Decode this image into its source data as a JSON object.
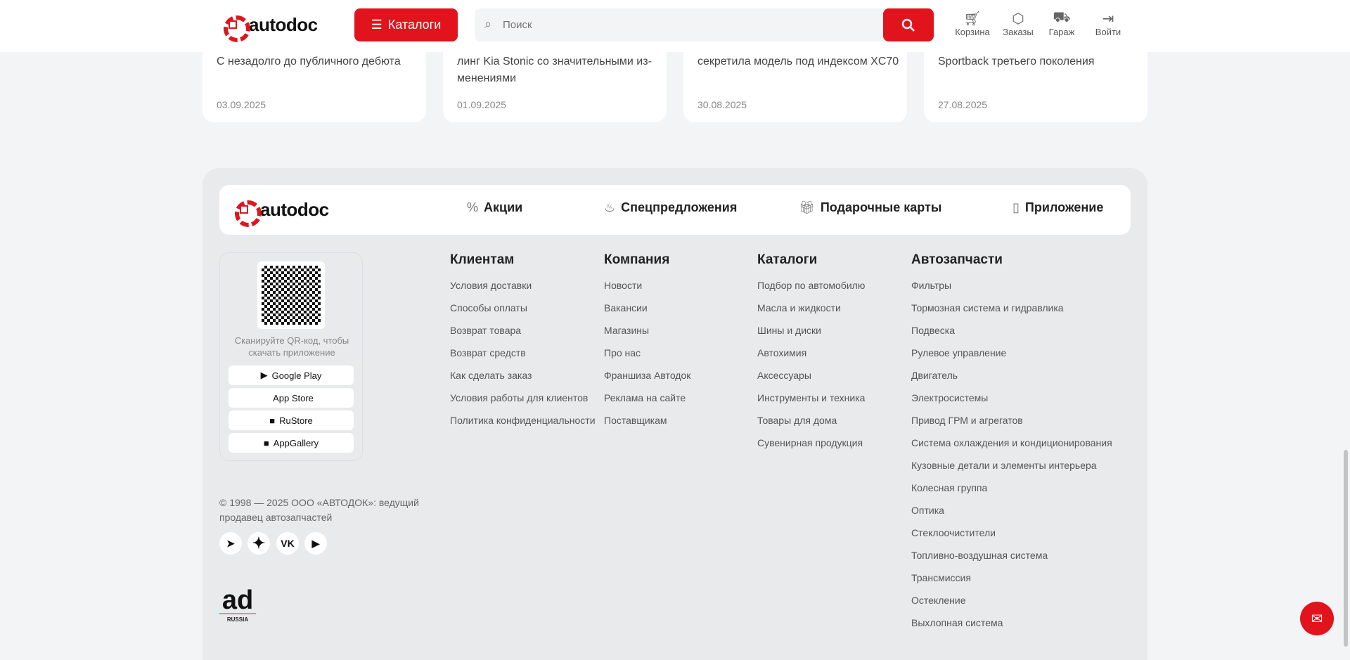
{
  "header": {
    "logo": "autodoc",
    "catalog_label": "Каталоги",
    "search_placeholder": "Поиск",
    "actions": [
      {
        "label": "Корзина",
        "icon": "cart-icon"
      },
      {
        "label": "Заказы",
        "icon": "box-icon"
      },
      {
        "label": "Гараж",
        "icon": "car-icon"
      },
      {
        "label": "Войти",
        "icon": "login-icon"
      }
    ]
  },
  "news": [
    {
      "text": "С незадолго до публичного дебюта",
      "date": "03.09.2025"
    },
    {
      "text": "линг Kia Stonic со значительными из­менениями",
      "date": "01.09.2025"
    },
    {
      "text": "секретила модель под индексом XC70",
      "date": "30.08.2025"
    },
    {
      "text": "Sportback третьего поколения",
      "date": "27.08.2025"
    }
  ],
  "footer": {
    "logo": "autodoc",
    "nav": [
      {
        "label": "Акции",
        "icon": "percent-icon"
      },
      {
        "label": "Спецпредложения",
        "icon": "fire-icon"
      },
      {
        "label": "Подарочные карты",
        "icon": "gift-icon"
      },
      {
        "label": "Приложение",
        "icon": "phone-icon"
      }
    ],
    "qr_text": "Сканируйте QR-код, чтобы скачать приложение",
    "stores": [
      "Google Play",
      "App Store",
      "RuStore",
      "AppGallery"
    ],
    "columns": [
      {
        "title": "Клиентам",
        "items": [
          "Условия доставки",
          "Способы оплаты",
          "Возврат товара",
          "Возврат средств",
          "Как сделать заказ",
          "Условия работы для клиентов",
          "Политика конфиденциальности"
        ]
      },
      {
        "title": "Компания",
        "items": [
          "Новости",
          "Вакансии",
          "Магазины",
          "Про нас",
          "Франшиза Автодок",
          "Реклама на сайте",
          "Поставщикам"
        ]
      },
      {
        "title": "Каталоги",
        "items": [
          "Подбор по автомобилю",
          "Масла и жидкости",
          "Шины и диски",
          "Автохимия",
          "Аксессуары",
          "Инструменты и техника",
          "Товары для дома",
          "Сувенирная продукция"
        ]
      },
      {
        "title": "Автозапчасти",
        "items": [
          "Фильтры",
          "Тормозная система и гидравлика",
          "Подвеска",
          "Рулевое управление",
          "Двигатель",
          "Электросистемы",
          "Привод ГРМ и агрегатов",
          "Система охлаждения и кондиционирования",
          "Кузовные детали и элементы интерьера",
          "Колесная группа",
          "Оптика",
          "Стеклоочистители",
          "Топливно-воздушная система",
          "Трансмиссия",
          "Остекление",
          "Выхлопная система"
        ]
      }
    ],
    "copyright": "© 1998 — 2025 ООО «АВТОДОК»: ведущий продавец автозапчастей",
    "social": [
      "telegram-icon",
      "sparkle-icon",
      "vk-icon",
      "youtube-icon"
    ],
    "badge": {
      "mark": "ad",
      "caption": "RUSSIA"
    }
  },
  "colors": {
    "brand": "#e1141d",
    "footer_bg": "#e9eaec",
    "page_bg": "#f3f4f6"
  }
}
